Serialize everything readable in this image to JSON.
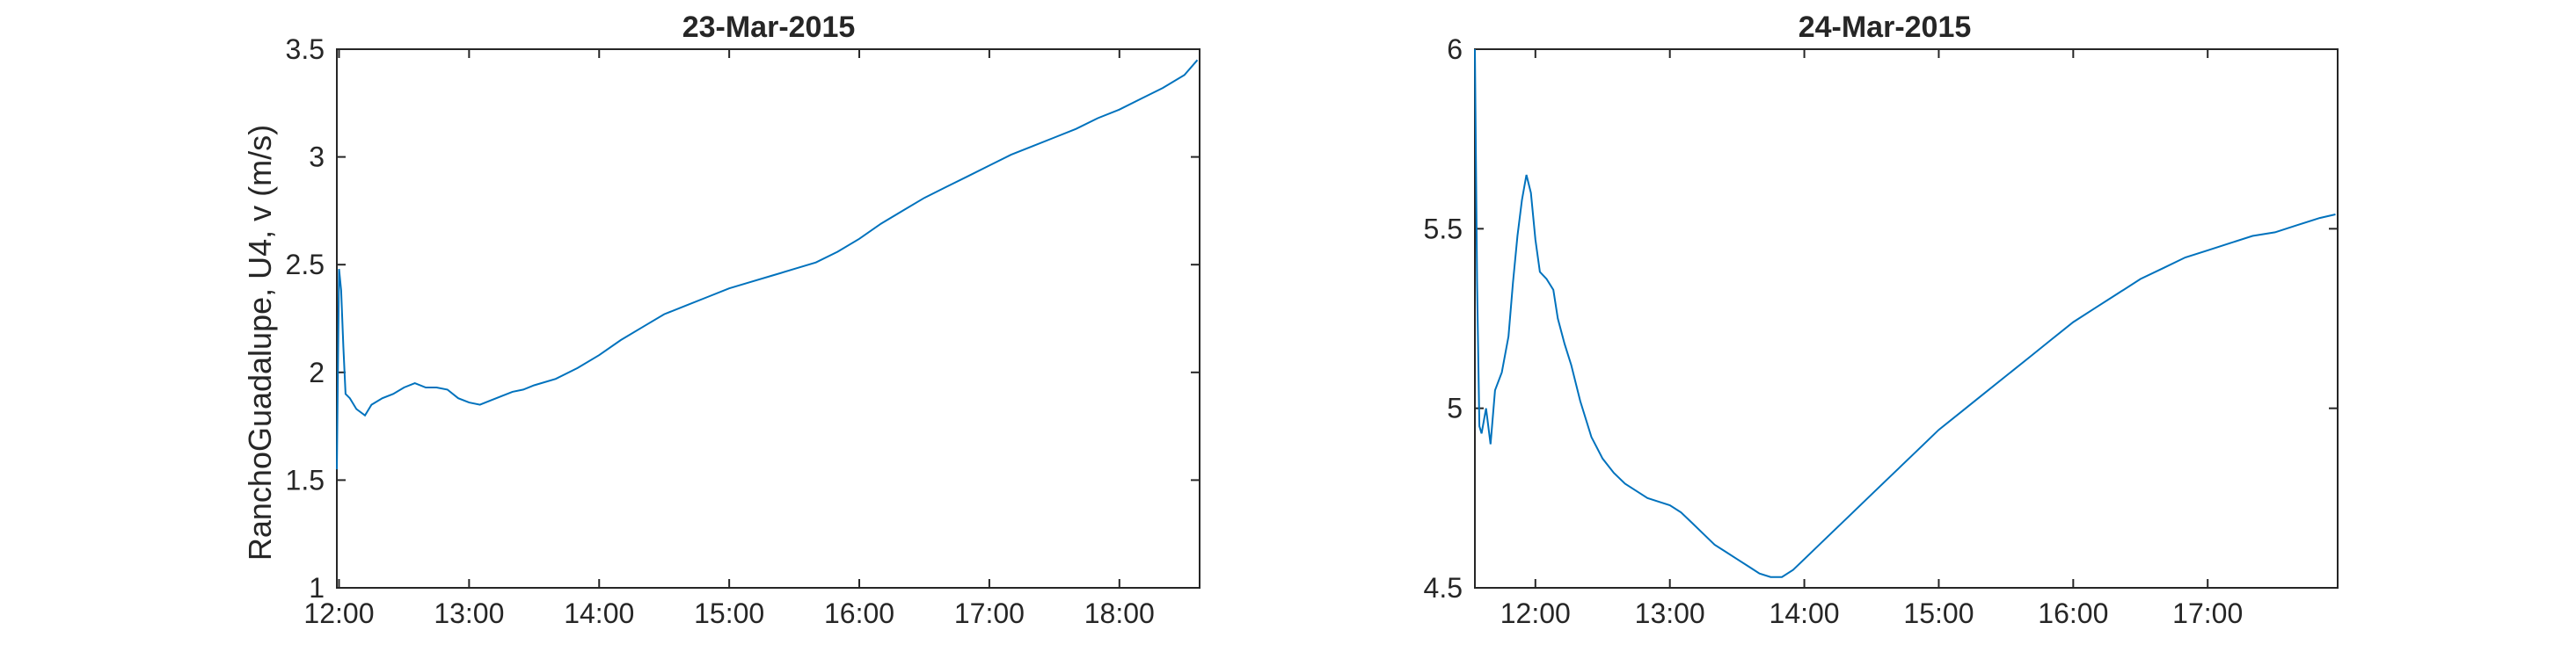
{
  "colors": {
    "line": "#0072BD",
    "axes": "#262626",
    "background": "#ffffff"
  },
  "chart_data": [
    {
      "type": "line",
      "title": "23-Mar-2015",
      "ylabel": "RanchoGuadalupe, U4, v (m/s)",
      "xlabel": "",
      "xlim": [
        "11:59",
        "18:37"
      ],
      "ylim": [
        1,
        3.5
      ],
      "xticks": [
        "12:00",
        "13:00",
        "14:00",
        "15:00",
        "16:00",
        "17:00",
        "18:00"
      ],
      "yticks": [
        "1",
        "1.5",
        "2",
        "2.5",
        "3",
        "3.5"
      ],
      "grid": false,
      "series": [
        {
          "x": [
            "11:59",
            "12:00",
            "12:01",
            "12:02",
            "12:03",
            "12:05",
            "12:08",
            "12:12",
            "12:15",
            "12:20",
            "12:25",
            "12:30",
            "12:35",
            "12:40",
            "12:45",
            "12:50",
            "12:55",
            "13:00",
            "13:05",
            "13:10",
            "13:15",
            "13:20",
            "13:25",
            "13:30",
            "13:40",
            "13:50",
            "14:00",
            "14:10",
            "14:20",
            "14:30",
            "14:40",
            "14:50",
            "15:00",
            "15:10",
            "15:20",
            "15:30",
            "15:40",
            "15:50",
            "16:00",
            "16:10",
            "16:20",
            "16:30",
            "16:40",
            "16:50",
            "17:00",
            "17:10",
            "17:20",
            "17:30",
            "17:40",
            "17:50",
            "18:00",
            "18:10",
            "18:20",
            "18:30",
            "18:36"
          ],
          "values": [
            1.55,
            2.48,
            2.38,
            2.12,
            1.9,
            1.88,
            1.83,
            1.8,
            1.85,
            1.88,
            1.9,
            1.93,
            1.95,
            1.93,
            1.93,
            1.92,
            1.88,
            1.86,
            1.85,
            1.87,
            1.89,
            1.91,
            1.92,
            1.94,
            1.97,
            2.02,
            2.08,
            2.15,
            2.21,
            2.27,
            2.31,
            2.35,
            2.39,
            2.42,
            2.45,
            2.48,
            2.51,
            2.56,
            2.62,
            2.69,
            2.75,
            2.81,
            2.86,
            2.91,
            2.96,
            3.01,
            3.05,
            3.09,
            3.13,
            3.18,
            3.22,
            3.27,
            3.32,
            3.38,
            3.45
          ]
        }
      ]
    },
    {
      "type": "line",
      "title": "24-Mar-2015",
      "ylabel": "",
      "xlabel": "",
      "xlim": [
        "11:33",
        "17:58"
      ],
      "ylim": [
        4.5,
        6
      ],
      "xticks": [
        "12:00",
        "13:00",
        "14:00",
        "15:00",
        "16:00",
        "17:00"
      ],
      "yticks": [
        "4.5",
        "5",
        "5.5",
        "6"
      ],
      "grid": false,
      "series": [
        {
          "x": [
            "11:33",
            "11:34",
            "11:35",
            "11:36",
            "11:38",
            "11:40",
            "11:42",
            "11:45",
            "11:48",
            "11:50",
            "11:52",
            "11:54",
            "11:56",
            "11:58",
            "12:00",
            "12:02",
            "12:05",
            "12:08",
            "12:10",
            "12:13",
            "12:16",
            "12:20",
            "12:25",
            "12:30",
            "12:35",
            "12:40",
            "12:45",
            "12:50",
            "12:55",
            "13:00",
            "13:05",
            "13:10",
            "13:15",
            "13:20",
            "13:25",
            "13:30",
            "13:35",
            "13:40",
            "13:45",
            "13:50",
            "13:55",
            "14:00",
            "14:10",
            "14:20",
            "14:30",
            "14:40",
            "14:50",
            "15:00",
            "15:10",
            "15:20",
            "15:30",
            "15:40",
            "15:50",
            "16:00",
            "16:10",
            "16:20",
            "16:30",
            "16:40",
            "16:50",
            "17:00",
            "17:10",
            "17:20",
            "17:30",
            "17:40",
            "17:50",
            "17:57"
          ],
          "values": [
            6.0,
            5.35,
            4.95,
            4.93,
            5.0,
            4.9,
            5.05,
            5.1,
            5.2,
            5.35,
            5.48,
            5.58,
            5.65,
            5.6,
            5.47,
            5.38,
            5.36,
            5.33,
            5.25,
            5.18,
            5.12,
            5.02,
            4.92,
            4.86,
            4.82,
            4.79,
            4.77,
            4.75,
            4.74,
            4.73,
            4.71,
            4.68,
            4.65,
            4.62,
            4.6,
            4.58,
            4.56,
            4.54,
            4.53,
            4.53,
            4.55,
            4.58,
            4.64,
            4.7,
            4.76,
            4.82,
            4.88,
            4.94,
            4.99,
            5.04,
            5.09,
            5.14,
            5.19,
            5.24,
            5.28,
            5.32,
            5.36,
            5.39,
            5.42,
            5.44,
            5.46,
            5.48,
            5.49,
            5.51,
            5.53,
            5.54
          ]
        }
      ]
    }
  ]
}
